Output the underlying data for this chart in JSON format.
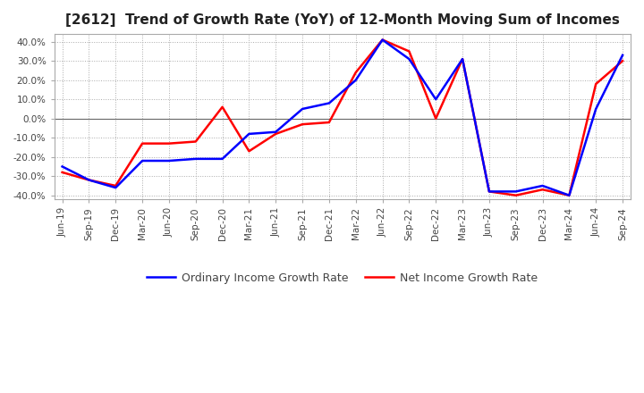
{
  "title": "[2612]  Trend of Growth Rate (YoY) of 12-Month Moving Sum of Incomes",
  "title_fontsize": 11,
  "ylim": [
    -42,
    44
  ],
  "yticks": [
    -40,
    -30,
    -20,
    -10,
    0,
    10,
    20,
    30,
    40
  ],
  "ytick_labels": [
    "-40.0%",
    "-30.0%",
    "-20.0%",
    "-10.0%",
    "0.0%",
    "10.0%",
    "20.0%",
    "30.0%",
    "40.0%"
  ],
  "ordinary_color": "#0000FF",
  "net_color": "#FF0000",
  "background_color": "#FFFFFF",
  "plot_bg_color": "#FFFFFF",
  "grid_color": "#AAAAAA",
  "x_labels": [
    "Jun-19",
    "Sep-19",
    "Dec-19",
    "Mar-20",
    "Jun-20",
    "Sep-20",
    "Dec-20",
    "Mar-21",
    "Jun-21",
    "Sep-21",
    "Dec-21",
    "Mar-22",
    "Jun-22",
    "Sep-22",
    "Dec-22",
    "Mar-23",
    "Jun-23",
    "Sep-23",
    "Dec-23",
    "Mar-24",
    "Jun-24",
    "Sep-24"
  ],
  "ordinary_income": [
    -25,
    -32,
    -36,
    -22,
    -22,
    -21,
    -21,
    -8,
    -7,
    5,
    8,
    20,
    41,
    31,
    10,
    31,
    -38,
    -38,
    -35,
    -40,
    5,
    33
  ],
  "net_income": [
    -28,
    -32,
    -35,
    -13,
    -13,
    -12,
    6,
    -17,
    -8,
    -3,
    -2,
    24,
    41,
    35,
    0,
    31,
    -38,
    -40,
    -37,
    -40,
    18,
    30
  ],
  "legend_ordinary": "Ordinary Income Growth Rate",
  "legend_net": "Net Income Growth Rate"
}
